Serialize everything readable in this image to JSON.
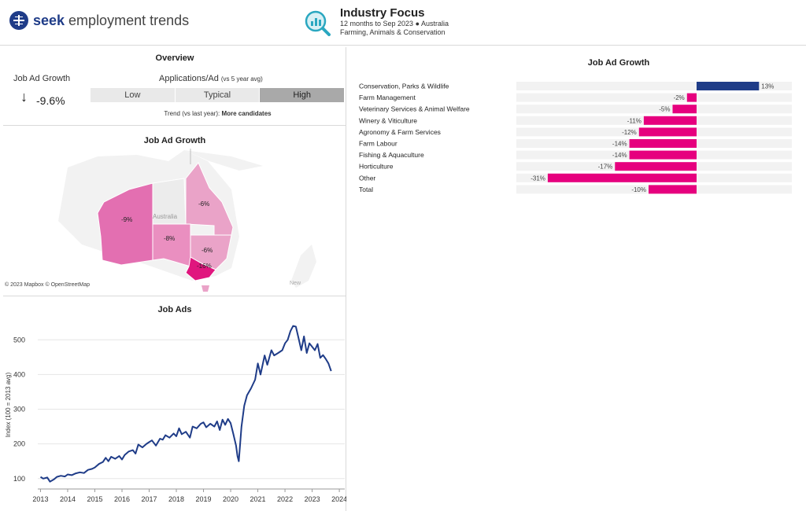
{
  "header": {
    "brand_bold": "seek",
    "brand_rest": "employment trends",
    "title": "Industry Focus",
    "subtitle1": "12 months to Sep 2023 ● Australia",
    "subtitle2": "Farming, Animals & Conservation",
    "logo_icon": "seek-logo-icon",
    "focus_icon": "magnifier-chart-icon"
  },
  "overview": {
    "title": "Overview",
    "job_ad_growth_label": "Job Ad Growth",
    "job_ad_growth_value": "-9.6%",
    "direction_icon": "arrow-down-icon",
    "apps_label": "Applications/Ad",
    "apps_label_note": "(vs 5 year avg)",
    "scale": [
      "Low",
      "Typical",
      "High"
    ],
    "scale_selected": "High",
    "trend_prefix": "Trend (vs last year):",
    "trend_value": "More candidates"
  },
  "map": {
    "title": "Job Ad Growth",
    "credit": "© 2023 Mapbox © OpenStreetMap",
    "country_label": "Australia",
    "nz_label": "New",
    "regions": [
      {
        "name": "WA",
        "value": "-9%"
      },
      {
        "name": "NT",
        "value": ""
      },
      {
        "name": "QLD",
        "value": "-6%"
      },
      {
        "name": "SA",
        "value": "-8%"
      },
      {
        "name": "NSW",
        "value": "-6%"
      },
      {
        "name": "VIC",
        "value": "-16%"
      }
    ]
  },
  "job_ads": {
    "title": "Job Ads",
    "line_color": "#1f3c88"
  },
  "bar_panel": {
    "title": "Job Ad Growth",
    "pos_color": "#1f3c88",
    "neg_color": "#e6007e"
  },
  "chart_data": [
    {
      "type": "bar",
      "orientation": "horizontal",
      "title": "Job Ad Growth",
      "categories": [
        "Conservation, Parks & Wildlife",
        "Farm Management",
        "Veterinary Services & Animal Welfare",
        "Winery & Viticulture",
        "Agronomy & Farm Services",
        "Farm Labour",
        "Fishing & Aquaculture",
        "Horticulture",
        "Other",
        "Total"
      ],
      "values": [
        13,
        -2,
        -5,
        -11,
        -12,
        -14,
        -14,
        -17,
        -31,
        -10
      ],
      "labels": [
        "13%",
        "-2%",
        "-5%",
        "-11%",
        "-12%",
        "-14%",
        "-14%",
        "-17%",
        "-31%",
        "-10%"
      ],
      "unit": "%"
    },
    {
      "type": "line",
      "title": "Job Ads",
      "ylabel": "Index (100 = 2013 avg)",
      "xlim": [
        2012.9,
        2024.2
      ],
      "ylim": [
        70,
        555
      ],
      "x_ticks": [
        "2013",
        "2014",
        "2015",
        "2016",
        "2017",
        "2018",
        "2019",
        "2020",
        "2021",
        "2022",
        "2023",
        "2024"
      ],
      "y_ticks": [
        "100",
        "200",
        "300",
        "400",
        "500"
      ],
      "grid": true,
      "series": [
        {
          "x": [
            2013.0,
            2013.1,
            2013.25,
            2013.35,
            2013.5,
            2013.6,
            2013.75,
            2013.9,
            2014.0,
            2014.15,
            2014.3,
            2014.45,
            2014.6,
            2014.75,
            2014.9,
            2015.0,
            2015.15,
            2015.3,
            2015.4,
            2015.5,
            2015.6,
            2015.75,
            2015.9,
            2016.0,
            2016.1,
            2016.25,
            2016.4,
            2016.5,
            2016.6,
            2016.75,
            2016.9,
            2017.0,
            2017.1,
            2017.25,
            2017.4,
            2017.5,
            2017.6,
            2017.75,
            2017.9,
            2018.0,
            2018.1,
            2018.2,
            2018.35,
            2018.5,
            2018.6,
            2018.75,
            2018.9,
            2019.0,
            2019.1,
            2019.25,
            2019.4,
            2019.5,
            2019.6,
            2019.7,
            2019.8,
            2019.9,
            2020.0,
            2020.1,
            2020.2,
            2020.25,
            2020.3,
            2020.4,
            2020.5,
            2020.6,
            2020.75,
            2020.9,
            2021.0,
            2021.1,
            2021.25,
            2021.35,
            2021.5,
            2021.6,
            2021.75,
            2021.9,
            2022.0,
            2022.1,
            2022.2,
            2022.3,
            2022.4,
            2022.5,
            2022.6,
            2022.7,
            2022.8,
            2022.9,
            2023.0,
            2023.1,
            2023.2,
            2023.3,
            2023.4,
            2023.5,
            2023.6,
            2023.7
          ],
          "y": [
            105,
            100,
            103,
            91,
            98,
            105,
            108,
            106,
            112,
            110,
            115,
            118,
            116,
            125,
            128,
            132,
            142,
            148,
            160,
            150,
            163,
            157,
            165,
            155,
            168,
            178,
            182,
            172,
            198,
            190,
            200,
            205,
            210,
            195,
            215,
            212,
            225,
            218,
            230,
            222,
            245,
            228,
            235,
            218,
            250,
            245,
            258,
            262,
            248,
            258,
            250,
            265,
            240,
            270,
            255,
            272,
            260,
            228,
            195,
            165,
            150,
            250,
            310,
            340,
            360,
            385,
            432,
            400,
            455,
            428,
            470,
            455,
            462,
            470,
            490,
            500,
            525,
            540,
            538,
            505,
            470,
            510,
            462,
            490,
            480,
            470,
            488,
            448,
            456,
            445,
            432,
            410
          ]
        }
      ]
    }
  ]
}
